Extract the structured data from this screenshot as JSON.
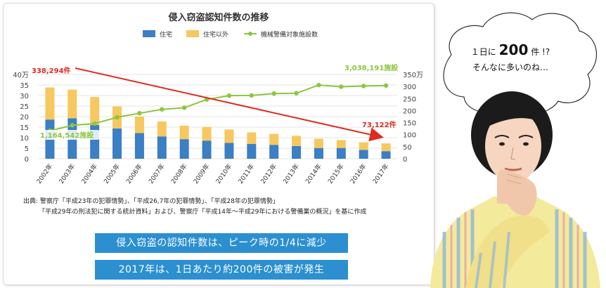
{
  "chart_data": {
    "type": "bar",
    "title": "侵入窃盗認知件数の推移",
    "categories": [
      "2002年",
      "2003年",
      "2004年",
      "2005年",
      "2006年",
      "2007年",
      "2008年",
      "2009年",
      "2010年",
      "2011年",
      "2012年",
      "2013年",
      "2014年",
      "2015年",
      "2016年",
      "2017年"
    ],
    "series": [
      {
        "name": "住宅",
        "kind": "bar",
        "stack": "a",
        "color": "#3b7fc4",
        "axis": "left",
        "values": [
          18.6,
          19.2,
          16.0,
          14.4,
          12.2,
          10.6,
          9.3,
          8.6,
          7.5,
          7.0,
          6.6,
          6.0,
          5.1,
          5.1,
          4.2,
          3.6
        ]
      },
      {
        "name": "住宅以外",
        "kind": "bar",
        "stack": "a",
        "color": "#f6c85f",
        "axis": "left",
        "values": [
          15.2,
          13.6,
          13.3,
          10.4,
          7.8,
          7.1,
          6.4,
          6.5,
          6.4,
          5.5,
          5.2,
          4.9,
          4.4,
          3.8,
          3.6,
          3.7
        ]
      },
      {
        "name": "機械警備対象施設数",
        "kind": "line",
        "color": "#8dc63f",
        "axis": "right",
        "values": [
          116,
          139,
          146,
          172,
          189,
          205,
          212,
          246,
          262,
          263,
          271,
          272,
          306,
          299,
          302,
          304
        ]
      }
    ],
    "left_axis": {
      "unit": "40万",
      "ticks": [
        "0",
        "5",
        "10",
        "15",
        "20",
        "25",
        "30",
        "35",
        "40万"
      ],
      "ylim": [
        0,
        40
      ]
    },
    "right_axis": {
      "unit": "350万",
      "ticks": [
        "0",
        "50",
        "100",
        "150",
        "200",
        "250",
        "300",
        "350万"
      ],
      "ylim": [
        0,
        350
      ]
    },
    "legend_placement": "top-center",
    "annotations": {
      "peak_theft": "338,294件",
      "latest_theft": "73,122件",
      "first_facilities": "1,164,542施設",
      "latest_facilities": "3,038,191施設"
    }
  },
  "colors": {
    "accent_red": "#e02b20",
    "banner_blue": "#2b8fd0",
    "line_green": "#8dc63f"
  },
  "source": {
    "line1": "出典: 警察庁「平成23年の犯罪情勢」、「平成26,7年の犯罪情勢」、「平成28年の犯罪情勢」",
    "line2": "「平成29年の刑法犯に関する統計資料」および、警察庁「平成14年～平成29年における警備業の概況」を基に作成"
  },
  "banners": {
    "b1": "侵入窃盗の認知件数は、ピーク時の1/4に減少",
    "b2": "2017年は、1日あたり約200件の被害が発生"
  },
  "bubble": {
    "line1_pre": "１日に",
    "line1_big": "200",
    "line1_post": "件 !?",
    "line2": "そんなに多いのね…"
  },
  "person_icon": "thinking-woman-illustration"
}
